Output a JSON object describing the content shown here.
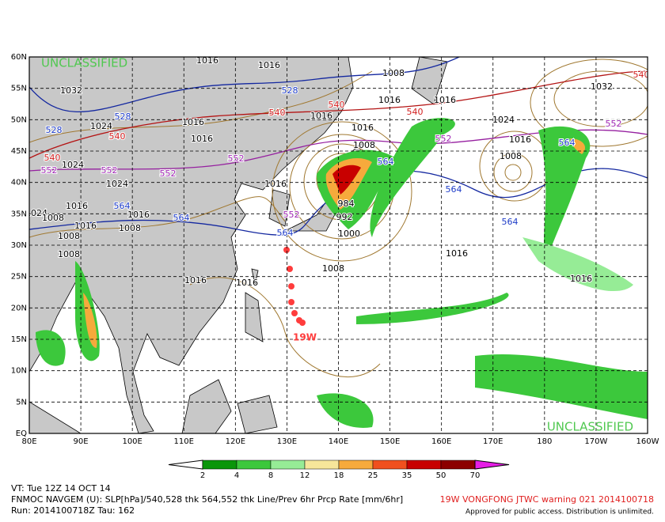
{
  "map": {
    "classification_top": "UNCLASSIFIED",
    "classification_bottom": "UNCLASSIFIED",
    "lat_labels": [
      "60N",
      "55N",
      "50N",
      "45N",
      "40N",
      "35N",
      "30N",
      "25N",
      "20N",
      "15N",
      "10N",
      "5N",
      "EQ"
    ],
    "lon_labels": [
      "80E",
      "90E",
      "100E",
      "110E",
      "120E",
      "130E",
      "140E",
      "150E",
      "160E",
      "170E",
      "180",
      "170W",
      "160W"
    ],
    "contour_labels": [
      "1016",
      "1016",
      "1008",
      "1032",
      "528",
      "540",
      "1016",
      "1016",
      "540",
      "528",
      "540",
      "1016",
      "1024",
      "1016",
      "1016",
      "1024",
      "552",
      "528",
      "540",
      "1016",
      "552",
      "1016",
      "1032",
      "540",
      "540",
      "1008",
      "1008",
      "564",
      "552",
      "1024",
      "552",
      "552",
      "552",
      "564",
      "1024",
      "1016",
      "564",
      "1024",
      "1016",
      "564",
      "1008",
      "1016",
      "1016",
      "564",
      "1008",
      "1008",
      "564",
      "1000",
      "992",
      "984",
      "552",
      "564",
      "1016",
      "1008",
      "1016",
      "1016",
      "1016",
      "1008"
    ],
    "storm_label": "19W"
  },
  "colorbar": {
    "labels": [
      "2",
      "4",
      "8",
      "12",
      "18",
      "25",
      "35",
      "50",
      "70"
    ],
    "colors": [
      "#ffffff",
      "#0a960a",
      "#3cc83c",
      "#96ec96",
      "#f6e69a",
      "#f6aa3c",
      "#f0501e",
      "#c80000",
      "#8c0000",
      "#e61ee6"
    ]
  },
  "footer": {
    "valid_time": "VT: Tue 12Z 14 OCT 14",
    "description": "FNMOC NAVGEM (U): SLP[hPa]/540,528 thk 564,552 thk Line/Prev 6hr Prcp Rate [mm/6hr]",
    "run": "Run: 2014100718Z Tau: 162",
    "warning": "19W VONGFONG JTWC warning 021 2014100718",
    "release": "Approved for public access. Distribution is unlimited."
  }
}
